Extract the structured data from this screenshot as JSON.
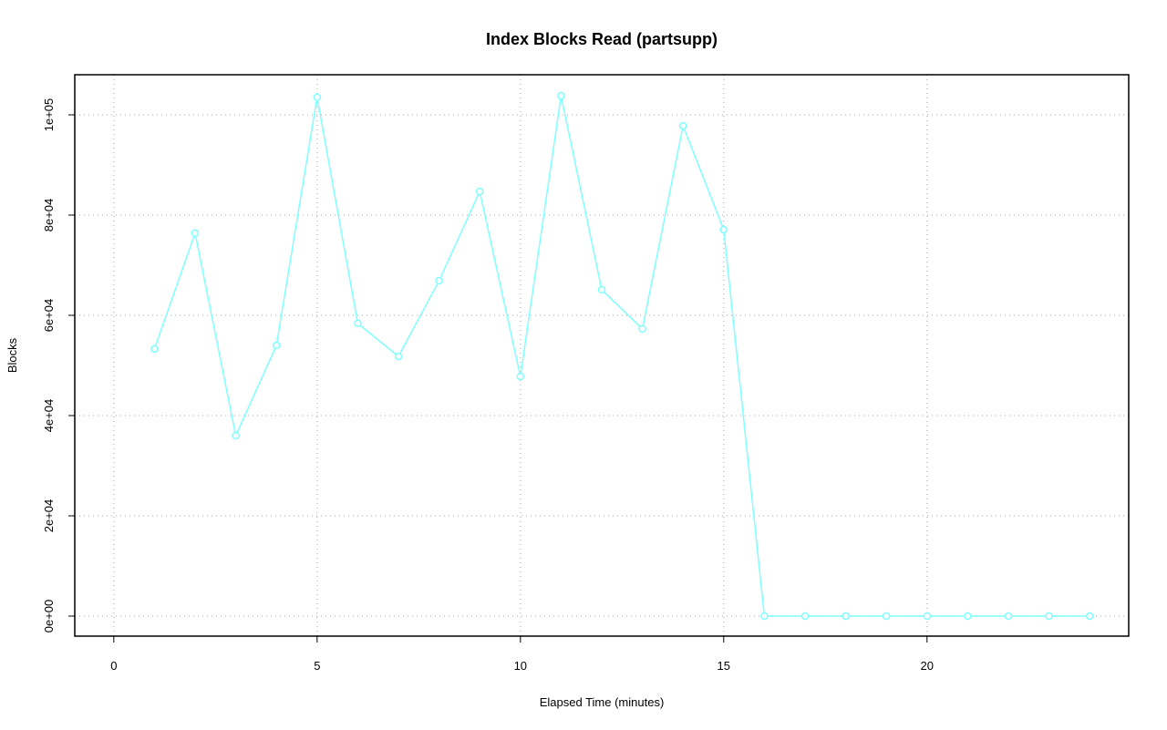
{
  "chart_data": {
    "type": "line",
    "title": "Index Blocks Read (partsupp)",
    "xlabel": "Elapsed Time (minutes)",
    "ylabel": "Blocks",
    "x": [
      1,
      2,
      3,
      4,
      5,
      6,
      7,
      8,
      9,
      10,
      11,
      12,
      13,
      14,
      15,
      16,
      17,
      18,
      19,
      20,
      21,
      22,
      23,
      24
    ],
    "series": [
      {
        "color": "#80ffff",
        "values": [
          53300,
          76400,
          36000,
          54000,
          103500,
          58400,
          51800,
          66900,
          84700,
          47800,
          103800,
          65100,
          57300,
          97800,
          77100,
          0,
          0,
          0,
          0,
          0,
          0,
          0,
          0,
          0
        ]
      }
    ],
    "xlim": [
      -0.96,
      24.96
    ],
    "xticks": [
      0,
      5,
      10,
      15,
      20
    ],
    "ylim": [
      -4000,
      108000
    ],
    "yticks": [
      {
        "value": 0,
        "label": "0e+00"
      },
      {
        "value": 20000,
        "label": "2e+04"
      },
      {
        "value": 40000,
        "label": "4e+04"
      },
      {
        "value": 60000,
        "label": "6e+04"
      },
      {
        "value": 80000,
        "label": "8e+04"
      },
      {
        "value": 100000,
        "label": "1e+05"
      }
    ],
    "grid": true
  }
}
